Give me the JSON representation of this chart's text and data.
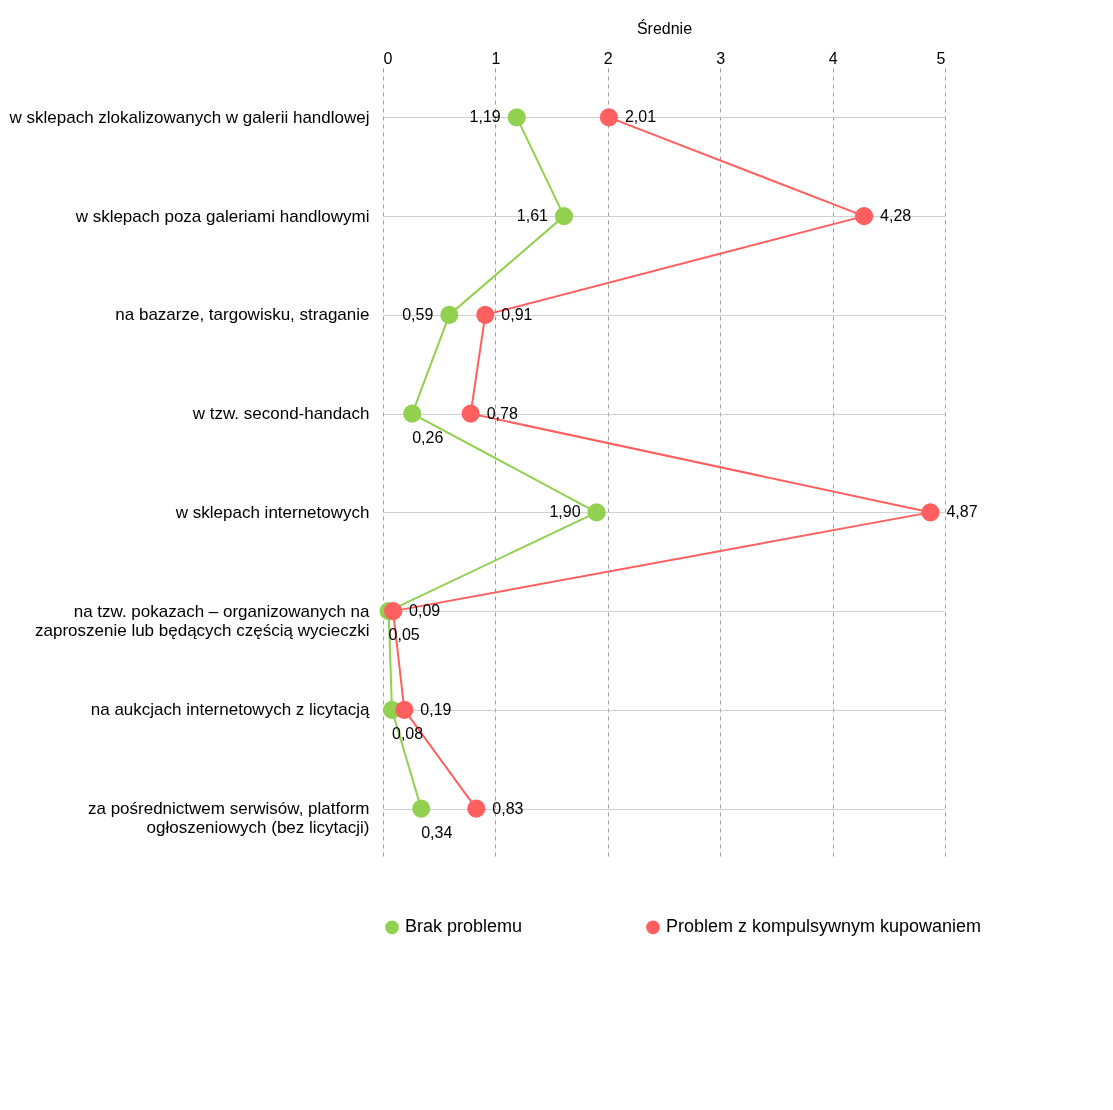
{
  "chart_data": {
    "type": "line",
    "orientation": "horizontal",
    "xlabel": "Średnie",
    "categories": [
      "w sklepach zlokalizowanych w galerii handlowej",
      "w sklepach poza galeriami handlowymi",
      "na bazarze, targowisku, straganie",
      "w tzw. second-handach",
      "w sklepach internetowych",
      "na tzw. pokazach – organizowanych na zaproszenie lub będących częścią wycieczki",
      "na aukcjach internetowych z licytacją",
      "za pośrednictwem serwisów, platform ogłoszeniowych (bez licytacji)"
    ],
    "series": [
      {
        "name": "Brak problemu",
        "color": "#92d050",
        "values": [
          1.19,
          1.61,
          0.59,
          0.26,
          1.9,
          0.05,
          0.08,
          0.34
        ],
        "value_labels": [
          "1,19",
          "1,61",
          "0,59",
          "0,26",
          "1,90",
          "0,05",
          "0,08",
          "0,34"
        ]
      },
      {
        "name": "Problem z kompulsywnym kupowaniem",
        "color": "#ff5f5f",
        "values": [
          2.01,
          4.28,
          0.91,
          0.78,
          4.87,
          0.09,
          0.19,
          0.83
        ],
        "value_labels": [
          "2,01",
          "4,28",
          "0,91",
          "0,78",
          "4,87",
          "0,09",
          "0,19",
          "0,83"
        ]
      }
    ],
    "xlim": [
      0,
      5
    ],
    "xticks": [
      0,
      1,
      2,
      3,
      4,
      5
    ],
    "grid": true,
    "legend": "bottom",
    "marker": "circle"
  }
}
